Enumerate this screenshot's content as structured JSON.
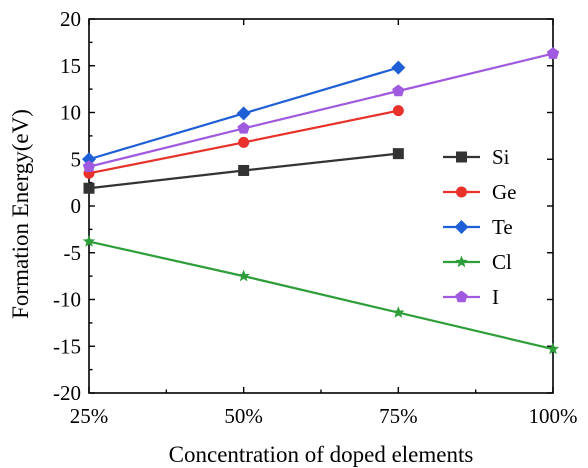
{
  "chart_data": {
    "type": "line",
    "xlabel": "Concentration of doped elements",
    "ylabel": "Formation Energy(eV)",
    "categories": [
      "25%",
      "50%",
      "75%",
      "100%"
    ],
    "ylim": [
      -20,
      20
    ],
    "yticks": [
      -20,
      -15,
      -10,
      -5,
      0,
      5,
      10,
      15,
      20
    ],
    "legend_position": "right",
    "grid": false,
    "series": [
      {
        "name": "Si",
        "color": "#333333",
        "marker": "square",
        "x": [
          "25%",
          "50%",
          "75%"
        ],
        "values": [
          1.9,
          3.8,
          5.6
        ]
      },
      {
        "name": "Ge",
        "color": "#e8312a",
        "marker": "circle",
        "x": [
          "25%",
          "50%",
          "75%"
        ],
        "values": [
          3.5,
          6.8,
          10.2
        ]
      },
      {
        "name": "Te",
        "color": "#1f5fd6",
        "marker": "diamond",
        "x": [
          "25%",
          "50%",
          "75%"
        ],
        "values": [
          5.0,
          9.9,
          14.8
        ]
      },
      {
        "name": "Cl",
        "color": "#2e9e3a",
        "marker": "star",
        "x": [
          "25%",
          "50%",
          "75%",
          "100%"
        ],
        "values": [
          -3.8,
          -7.5,
          -11.4,
          -15.3
        ]
      },
      {
        "name": "I",
        "color": "#a05ae0",
        "marker": "pentagon",
        "x": [
          "25%",
          "50%",
          "75%",
          "100%"
        ],
        "values": [
          4.2,
          8.3,
          12.3,
          16.3
        ]
      }
    ]
  }
}
